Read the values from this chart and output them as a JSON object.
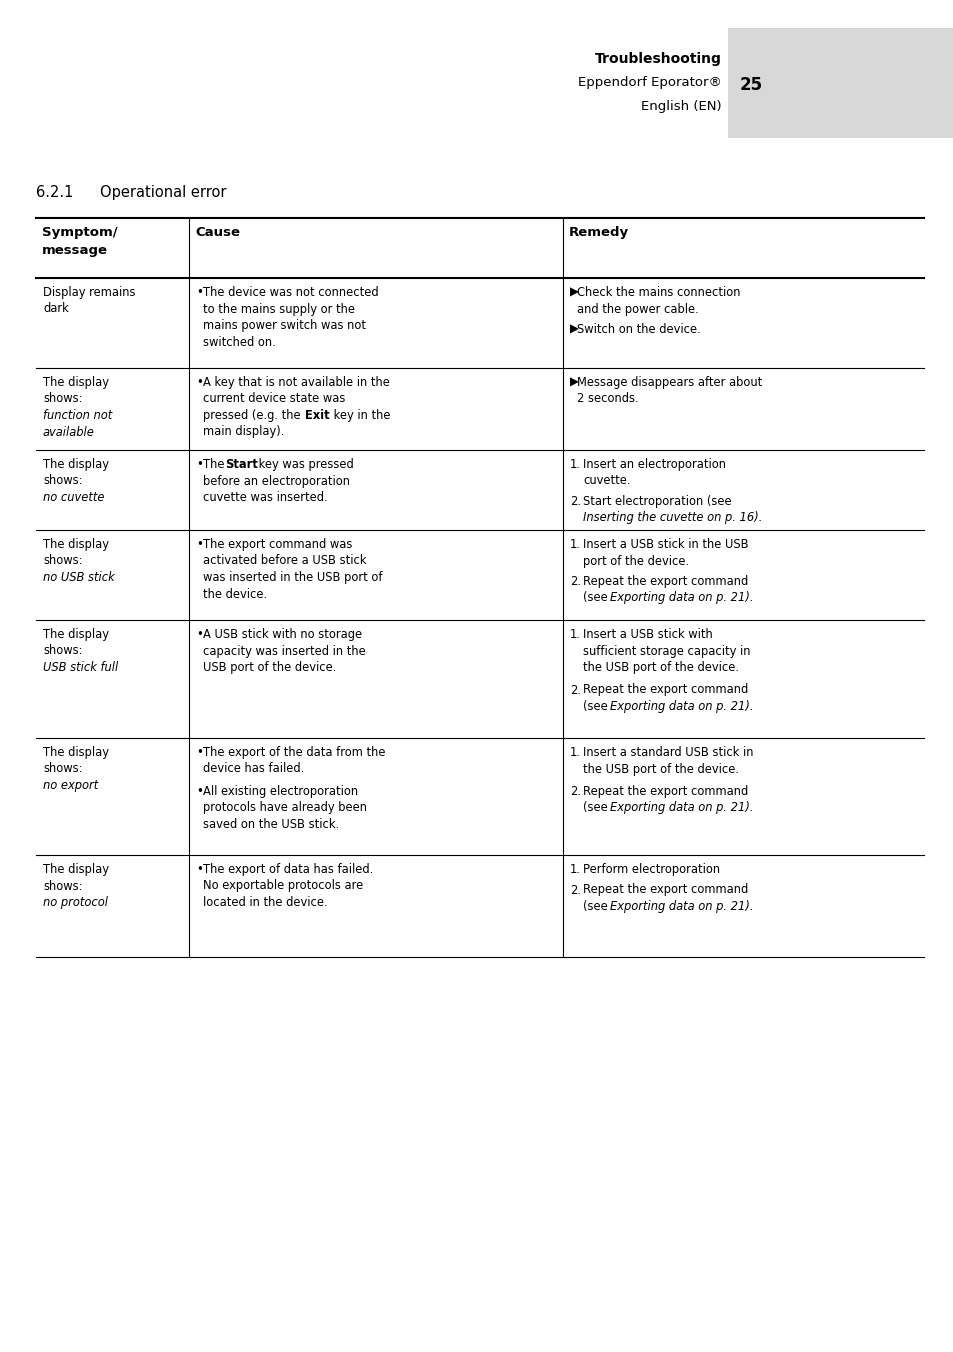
{
  "page_bg": "#ffffff",
  "header_bg": "#d8d8d8",
  "body_text_color": "#000000",
  "title_section": "Troubleshooting",
  "subtitle1": "Eppendorf Eporator®",
  "page_num": "25",
  "subtitle2": "English (EN)",
  "section_heading_num": "6.2.1",
  "section_heading_text": "Operational error",
  "figw": 9.54,
  "figh": 13.52,
  "dpi": 100
}
